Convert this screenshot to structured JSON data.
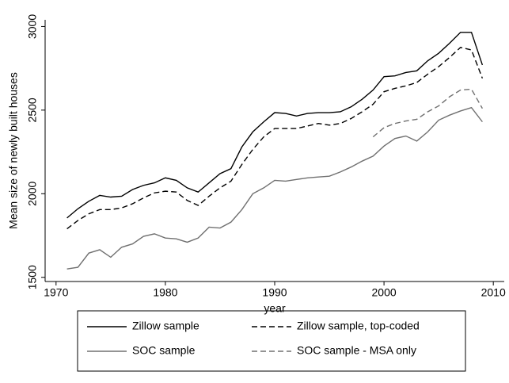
{
  "chart_data": {
    "type": "line",
    "x_label": "year",
    "y_label": "Mean size of newly built houses",
    "x": [
      1971,
      1972,
      1973,
      1974,
      1975,
      1976,
      1977,
      1978,
      1979,
      1980,
      1981,
      1982,
      1983,
      1984,
      1985,
      1986,
      1987,
      1988,
      1989,
      1990,
      1991,
      1992,
      1993,
      1994,
      1995,
      1996,
      1997,
      1998,
      1999,
      2000,
      2001,
      2002,
      2003,
      2004,
      2005,
      2006,
      2007,
      2008,
      2009
    ],
    "series": [
      {
        "name": "Zillow sample",
        "color": "#000000",
        "style": "solid",
        "values": [
          1855,
          1910,
          1955,
          1990,
          1980,
          1985,
          2025,
          2050,
          2065,
          2095,
          2080,
          2035,
          2010,
          2065,
          2120,
          2150,
          2280,
          2370,
          2430,
          2485,
          2480,
          2465,
          2480,
          2485,
          2485,
          2490,
          2520,
          2565,
          2620,
          2700,
          2705,
          2725,
          2735,
          2795,
          2840,
          2900,
          2965,
          2965,
          2770
        ]
      },
      {
        "name": "Zillow sample, top-coded",
        "color": "#000000",
        "style": "dashed",
        "values": [
          1790,
          1840,
          1880,
          1905,
          1905,
          1915,
          1940,
          1975,
          2005,
          2015,
          2010,
          1960,
          1930,
          1985,
          2035,
          2075,
          2175,
          2265,
          2340,
          2390,
          2390,
          2390,
          2405,
          2420,
          2410,
          2420,
          2450,
          2490,
          2535,
          2610,
          2630,
          2645,
          2665,
          2715,
          2760,
          2815,
          2875,
          2860,
          2690
        ]
      },
      {
        "name": "SOC sample",
        "color": "#707070",
        "style": "solid",
        "values": [
          1550,
          1560,
          1645,
          1665,
          1620,
          1680,
          1700,
          1745,
          1760,
          1735,
          1730,
          1710,
          1735,
          1800,
          1795,
          1830,
          1905,
          2000,
          2035,
          2080,
          2075,
          2085,
          2095,
          2100,
          2105,
          2130,
          2160,
          2195,
          2225,
          2285,
          2330,
          2345,
          2315,
          2370,
          2440,
          2470,
          2495,
          2515,
          2430
        ]
      },
      {
        "name": "SOC sample - MSA only",
        "color": "#707070",
        "style": "dashed",
        "values": [
          null,
          null,
          null,
          null,
          null,
          null,
          null,
          null,
          null,
          null,
          null,
          null,
          null,
          null,
          null,
          null,
          null,
          null,
          null,
          null,
          null,
          null,
          null,
          null,
          null,
          null,
          null,
          null,
          2340,
          2395,
          2420,
          2435,
          2445,
          2490,
          2525,
          2580,
          2620,
          2625,
          2510
        ]
      }
    ],
    "xlim": [
      1969,
      2011
    ],
    "xticks": [
      1970,
      1980,
      1990,
      2000,
      2010
    ],
    "ylim": [
      1475,
      3040
    ],
    "yticks": [
      1500,
      2000,
      2500,
      3000
    ],
    "grid": false,
    "legend": "bottom"
  }
}
